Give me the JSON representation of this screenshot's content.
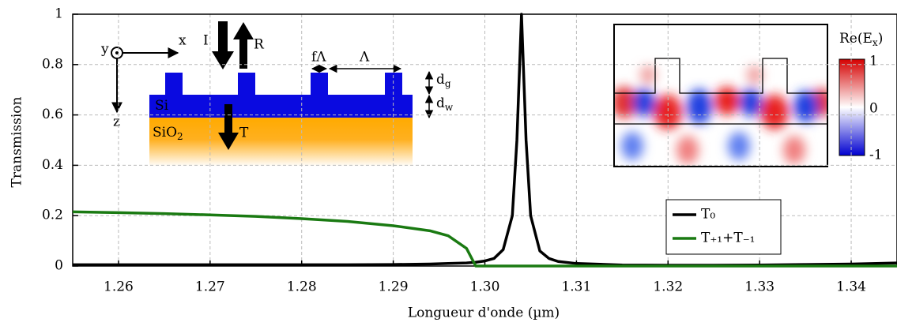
{
  "chart_data": {
    "type": "line",
    "xlabel": "Longueur d'onde (µm)",
    "ylabel": "Transmission",
    "x": [
      1.255,
      1.26,
      1.265,
      1.27,
      1.275,
      1.28,
      1.285,
      1.29,
      1.294,
      1.296,
      1.298,
      1.299,
      1.3,
      1.301,
      1.302,
      1.303,
      1.3035,
      1.304,
      1.3045,
      1.305,
      1.306,
      1.307,
      1.308,
      1.31,
      1.315,
      1.32,
      1.325,
      1.33,
      1.335,
      1.34,
      1.345
    ],
    "series": [
      {
        "name": "T₀",
        "color": "#000000",
        "values": [
          0.005,
          0.005,
          0.005,
          0.005,
          0.005,
          0.005,
          0.005,
          0.006,
          0.008,
          0.01,
          0.012,
          0.015,
          0.02,
          0.03,
          0.065,
          0.2,
          0.5,
          1,
          0.5,
          0.2,
          0.06,
          0.03,
          0.018,
          0.01,
          0.004,
          0.003,
          0.003,
          0.004,
          0.006,
          0.008,
          0.012
        ]
      },
      {
        "name": "T₊₁+T₋₁",
        "color": "#1a7a12",
        "values": [
          0.215,
          0.212,
          0.208,
          0.203,
          0.197,
          0.188,
          0.177,
          0.16,
          0.14,
          0.12,
          0.07,
          0,
          0,
          0,
          0,
          0,
          0,
          0,
          0,
          0,
          0,
          0,
          0,
          0,
          0,
          0,
          0,
          0,
          0,
          0,
          0
        ]
      }
    ],
    "xlim": [
      1.255,
      1.345
    ],
    "xticks": [
      1.26,
      1.27,
      1.28,
      1.29,
      {
        "value": 1.3,
        "label": "1.30"
      },
      1.31,
      1.32,
      1.33,
      1.34
    ],
    "ylim": [
      0,
      1
    ],
    "yticks": [
      0,
      0.2,
      0.4,
      0.6,
      0.8,
      1
    ],
    "grid": true,
    "legend": "lower right",
    "diagram": {
      "axes": [
        "x",
        "y",
        "z"
      ],
      "beams": [
        "I",
        "R",
        "T"
      ],
      "periods": [
        "fΛ",
        "Λ"
      ],
      "layers": [
        [
          {
            "text": "Si"
          }
        ],
        [
          {
            "text": "SiO"
          },
          {
            "text": "2",
            "sub": true
          }
        ]
      ],
      "thicknesses": [
        [
          {
            "text": "d"
          },
          {
            "text": "g",
            "sub": true
          }
        ],
        [
          {
            "text": "d"
          },
          {
            "text": "w",
            "sub": true
          }
        ]
      ]
    },
    "field_map": {
      "title": [
        {
          "text": "Re(E"
        },
        {
          "text": "x",
          "sub": true
        },
        {
          "text": ")"
        }
      ],
      "ticks": [
        "1",
        "0",
        "-1"
      ]
    }
  }
}
